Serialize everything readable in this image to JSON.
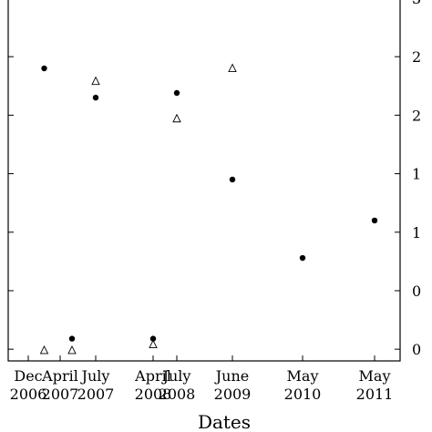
{
  "chart_data": {
    "type": "scatter",
    "title": "",
    "xlabel": "Dates",
    "ylabel": "",
    "x_ticks": [
      {
        "line1": "Dec",
        "line2": "2006",
        "date": "2006-12"
      },
      {
        "line1": "April",
        "line2": "2007",
        "date": "2007-04"
      },
      {
        "line1": "July",
        "line2": "2007",
        "date": "2007-07"
      },
      {
        "line1": "April",
        "line2": "2008",
        "date": "2008-04"
      },
      {
        "line1": "July",
        "line2": "2008",
        "date": "2008-07"
      },
      {
        "line1": "June",
        "line2": "2009",
        "date": "2009-06"
      },
      {
        "line1": "May",
        "line2": "2010",
        "date": "2010-05"
      },
      {
        "line1": "May",
        "line2": "2011",
        "date": "2011-05"
      }
    ],
    "y_tick_labels": [
      "0",
      "0",
      "1",
      "1",
      "2",
      "2",
      "3"
    ],
    "y_tick_values": [
      0.1,
      0.6,
      1.1,
      1.6,
      2.1,
      2.6,
      3.1
    ],
    "ylim": [
      0,
      3.1
    ],
    "grid": false,
    "legend": "none",
    "series": [
      {
        "marker": "filled-circle",
        "points": [
          {
            "x": "2007-02",
            "y": 2.5
          },
          {
            "x": "2007-05",
            "y": 0.19
          },
          {
            "x": "2007-07",
            "y": 2.25
          },
          {
            "x": "2008-04",
            "y": 0.19
          },
          {
            "x": "2008-07",
            "y": 2.29
          },
          {
            "x": "2009-06",
            "y": 1.55
          },
          {
            "x": "2010-05",
            "y": 0.88
          },
          {
            "x": "2011-05",
            "y": 1.2
          }
        ]
      },
      {
        "marker": "open-triangle",
        "points": [
          {
            "x": "2007-02",
            "y": 0.09
          },
          {
            "x": "2007-05",
            "y": 0.09
          },
          {
            "x": "2007-07",
            "y": 2.39
          },
          {
            "x": "2008-04",
            "y": 0.14
          },
          {
            "x": "2008-07",
            "y": 2.07
          },
          {
            "x": "2009-06",
            "y": 2.5
          }
        ]
      }
    ]
  }
}
